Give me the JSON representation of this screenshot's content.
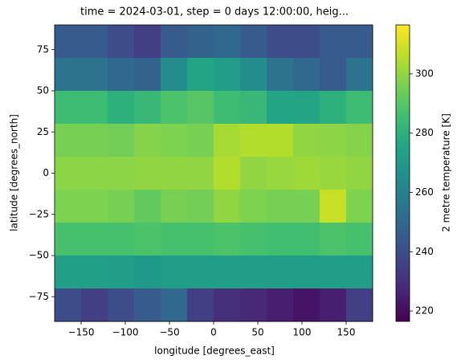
{
  "chart_data": {
    "type": "heatmap",
    "title": "time = 2024-03-01, step = 0 days 12:00:00, heig...",
    "x_label": "longitude [degrees_east]",
    "y_label": "latitude [degrees_north]",
    "colorbar_label": "2 metre temperature [K]",
    "colormap": "viridis",
    "x": [
      -165,
      -135,
      -105,
      -75,
      -45,
      -15,
      15,
      45,
      75,
      105,
      135,
      165
    ],
    "y": [
      80,
      60,
      40,
      20,
      0,
      -20,
      -40,
      -60,
      -80
    ],
    "z": [
      [
        245,
        245,
        240,
        235,
        245,
        248,
        250,
        245,
        240,
        240,
        245,
        245
      ],
      [
        255,
        255,
        250,
        248,
        265,
        275,
        272,
        265,
        255,
        250,
        245,
        255
      ],
      [
        285,
        285,
        280,
        283,
        288,
        290,
        285,
        283,
        275,
        275,
        280,
        285
      ],
      [
        296,
        296,
        295,
        298,
        297,
        296,
        303,
        305,
        305,
        300,
        299,
        298
      ],
      [
        299,
        299,
        299,
        300,
        300,
        300,
        305,
        300,
        301,
        302,
        301,
        300
      ],
      [
        297,
        297,
        296,
        292,
        296,
        295,
        300,
        297,
        296,
        296,
        308,
        297
      ],
      [
        287,
        287,
        287,
        288,
        287,
        287,
        288,
        287,
        286,
        286,
        288,
        287
      ],
      [
        273,
        273,
        272,
        270,
        272,
        272,
        272,
        272,
        272,
        272,
        272,
        272
      ],
      [
        240,
        235,
        240,
        245,
        250,
        235,
        230,
        228,
        225,
        222,
        225,
        235
      ]
    ],
    "xlim": [
      -180,
      180
    ],
    "ylim": [
      -90,
      90
    ],
    "clim": [
      216.5,
      316.5
    ],
    "xticks": [
      {
        "value": -150,
        "label": "−150"
      },
      {
        "value": -100,
        "label": "−100"
      },
      {
        "value": -50,
        "label": "−50"
      },
      0,
      50,
      100,
      150
    ],
    "yticks": [
      {
        "value": -75,
        "label": "−75"
      },
      {
        "value": -50,
        "label": "−50"
      },
      {
        "value": -25,
        "label": "−25"
      },
      0,
      25,
      50,
      75
    ],
    "cticks": [
      220,
      240,
      260,
      280,
      300
    ]
  }
}
